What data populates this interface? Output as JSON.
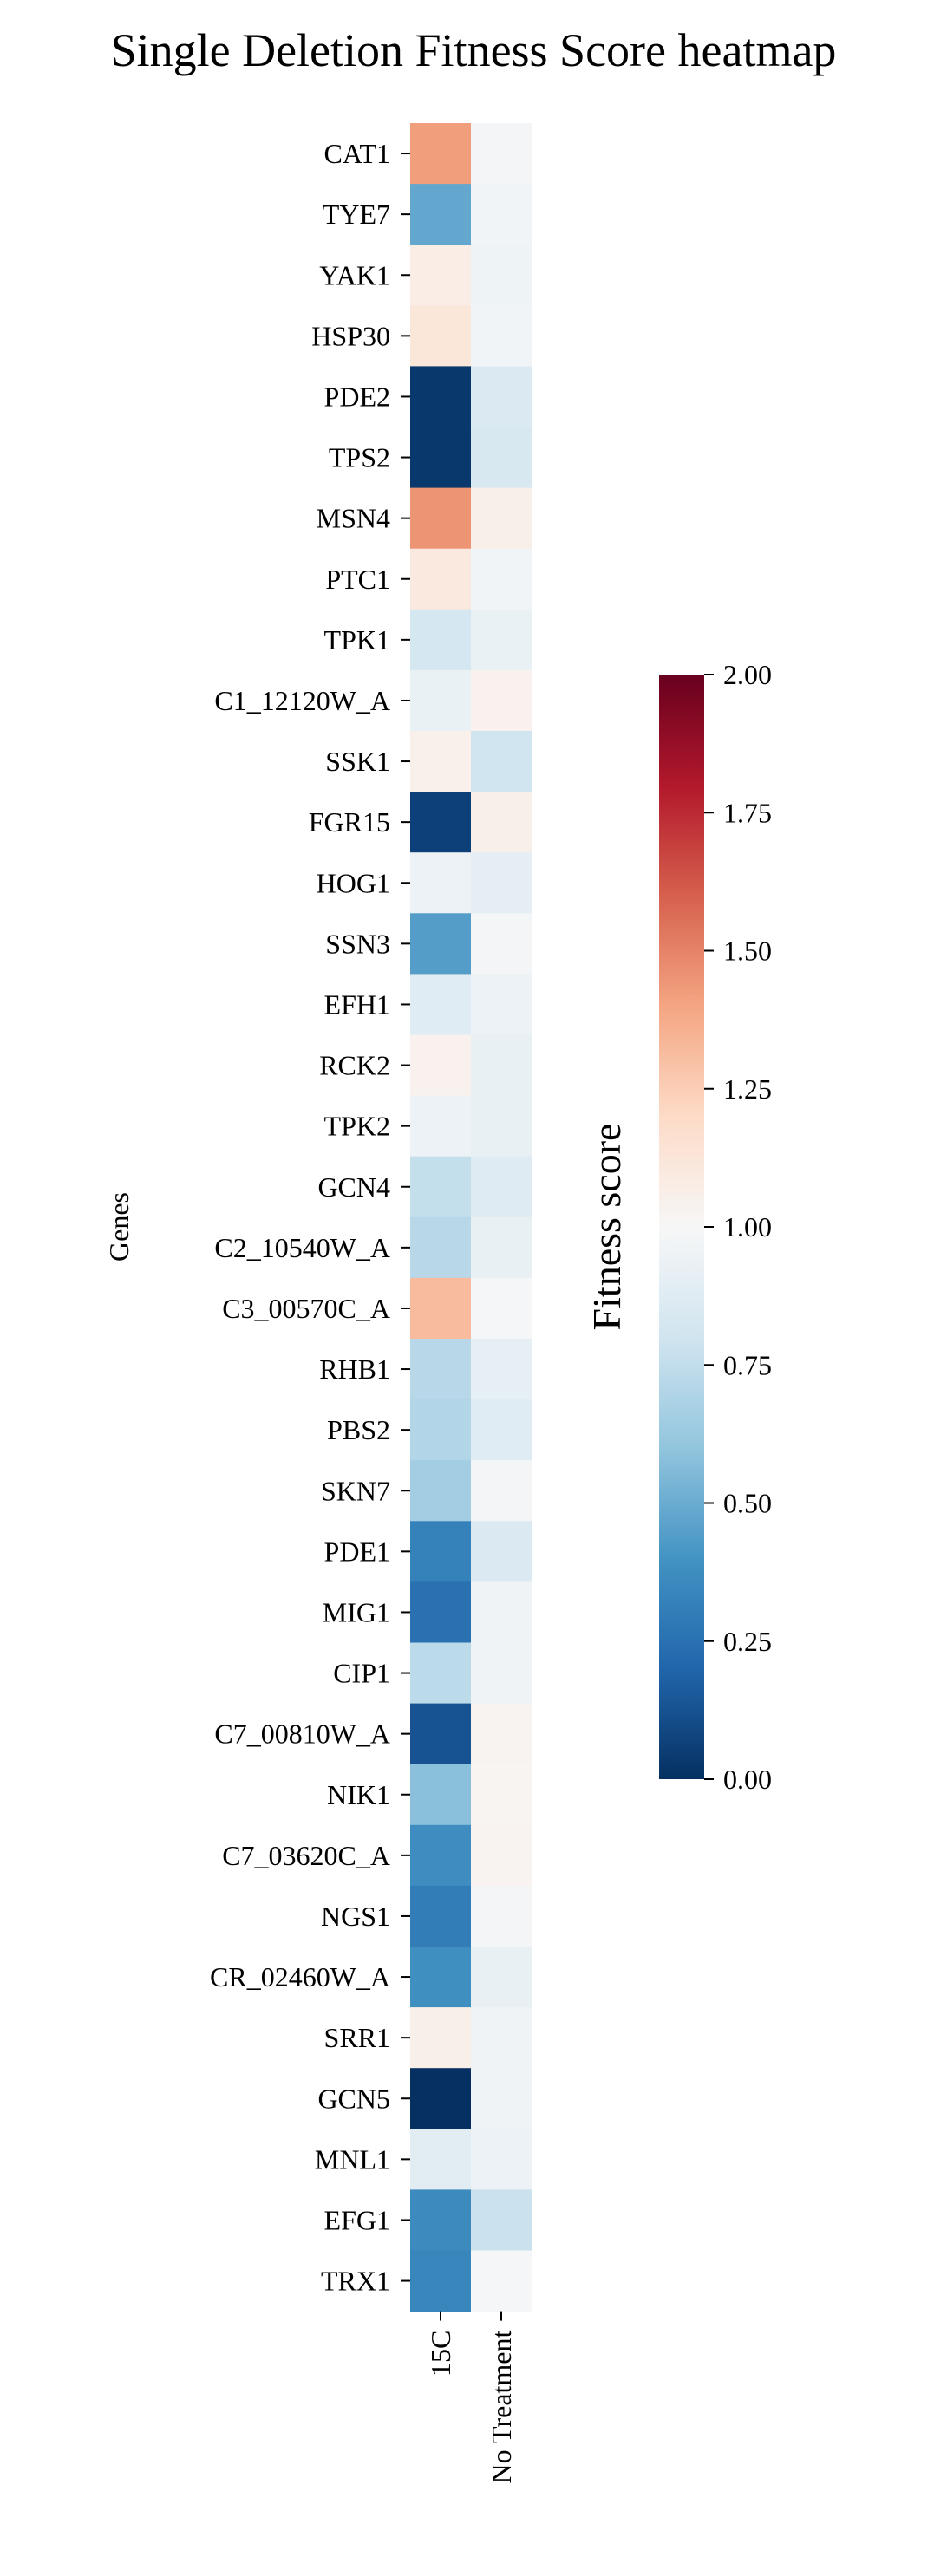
{
  "chart_data": {
    "type": "heatmap",
    "title": "Single Deletion Fitness Score heatmap",
    "ylabel": "Genes",
    "xlabel": "",
    "columns": [
      "15C",
      "No Treatment"
    ],
    "rows": [
      "CAT1",
      "TYE7",
      "YAK1",
      "HSP30",
      "PDE2",
      "TPS2",
      "MSN4",
      "PTC1",
      "TPK1",
      "C1_12120W_A",
      "SSK1",
      "FGR15",
      "HOG1",
      "SSN3",
      "EFH1",
      "RCK2",
      "TPK2",
      "GCN4",
      "C2_10540W_A",
      "C3_00570C_A",
      "RHB1",
      "PBS2",
      "SKN7",
      "PDE1",
      "MIG1",
      "CIP1",
      "C7_00810W_A",
      "NIK1",
      "C7_03620C_A",
      "NGS1",
      "CR_02460W_A",
      "SRR1",
      "GCN5",
      "MNL1",
      "EFG1",
      "TRX1"
    ],
    "values": [
      [
        1.42,
        0.98
      ],
      [
        0.48,
        0.97
      ],
      [
        1.07,
        0.95
      ],
      [
        1.12,
        0.97
      ],
      [
        0.03,
        0.85
      ],
      [
        0.03,
        0.83
      ],
      [
        1.45,
        1.06
      ],
      [
        1.1,
        0.97
      ],
      [
        0.82,
        0.93
      ],
      [
        0.93,
        1.04
      ],
      [
        1.05,
        0.8
      ],
      [
        0.06,
        1.06
      ],
      [
        0.94,
        0.9
      ],
      [
        0.44,
        0.98
      ],
      [
        0.88,
        0.94
      ],
      [
        1.04,
        0.92
      ],
      [
        0.94,
        0.92
      ],
      [
        0.76,
        0.87
      ],
      [
        0.72,
        0.92
      ],
      [
        1.32,
        0.99
      ],
      [
        0.72,
        0.91
      ],
      [
        0.7,
        0.88
      ],
      [
        0.65,
        0.98
      ],
      [
        0.32,
        0.85
      ],
      [
        0.25,
        0.96
      ],
      [
        0.73,
        0.96
      ],
      [
        0.13,
        1.03
      ],
      [
        0.58,
        1.02
      ],
      [
        0.37,
        1.03
      ],
      [
        0.3,
        0.98
      ],
      [
        0.38,
        0.92
      ],
      [
        1.06,
        0.96
      ],
      [
        0.0,
        0.96
      ],
      [
        0.89,
        0.94
      ],
      [
        0.36,
        0.78
      ],
      [
        0.34,
        0.99
      ]
    ],
    "colorbar": {
      "label": "Fitness score",
      "min": 0.0,
      "max": 2.0,
      "ticks": [
        "0.00",
        "0.25",
        "0.50",
        "0.75",
        "1.00",
        "1.25",
        "1.50",
        "1.75",
        "2.00"
      ],
      "colormap": "RdBu_r",
      "colors": [
        "#053061",
        "#2166ac",
        "#4393c3",
        "#92c5de",
        "#d1e5f0",
        "#f7f7f7",
        "#fddbc7",
        "#f4a582",
        "#d6604d",
        "#b2182b",
        "#67001f"
      ]
    },
    "grid": false,
    "legend": "right"
  }
}
